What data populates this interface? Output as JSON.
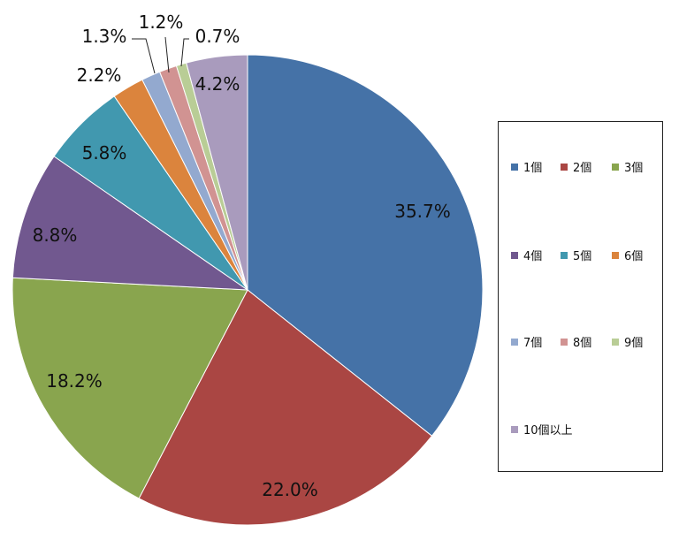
{
  "chart_data": {
    "type": "pie",
    "categories": [
      "1個",
      "2個",
      "3個",
      "4個",
      "5個",
      "6個",
      "7個",
      "8個",
      "9個",
      "10個以上"
    ],
    "values": [
      35.7,
      22.0,
      18.2,
      8.8,
      5.8,
      2.2,
      1.3,
      1.2,
      0.7,
      4.2
    ],
    "labels": [
      "35.7%",
      "22.0%",
      "18.2%",
      "8.8%",
      "5.8%",
      "2.2%",
      "1.3%",
      "1.2%",
      "0.7%",
      "4.2%"
    ],
    "colors": [
      "#4572A7",
      "#AA4643",
      "#89A54E",
      "#71588F",
      "#4198AF",
      "#DB843D",
      "#93A9CF",
      "#D19392",
      "#B9CD96",
      "#A99BBD"
    ],
    "legend_position": "right"
  }
}
